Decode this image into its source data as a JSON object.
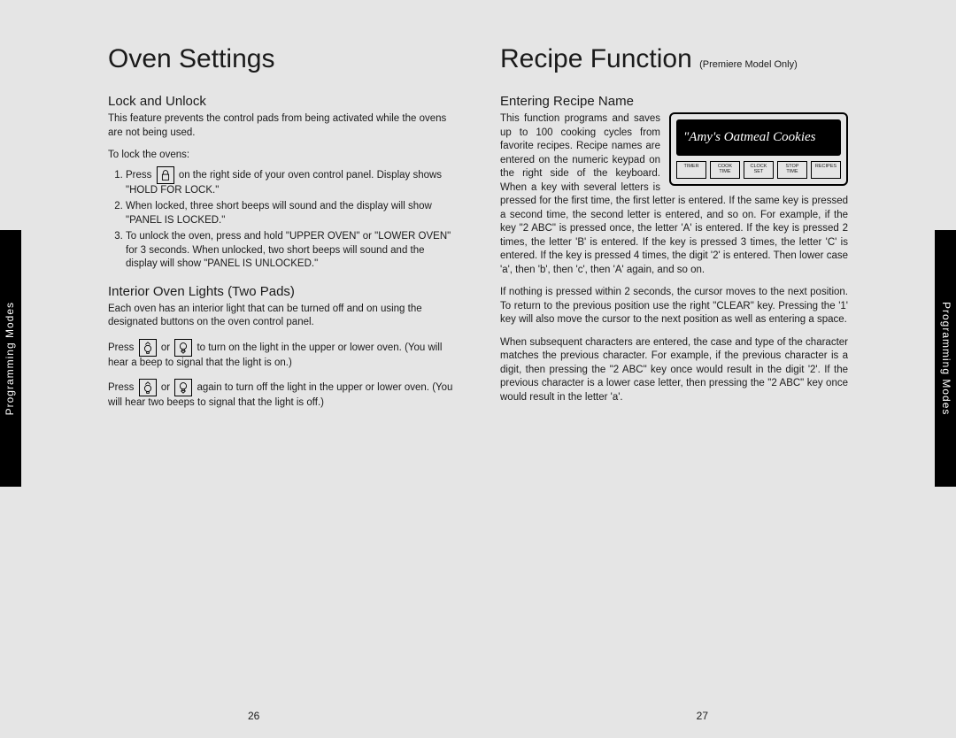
{
  "sidebar": {
    "label": "Programming Modes"
  },
  "left": {
    "title": "Oven Settings",
    "section1": {
      "heading": "Lock and Unlock",
      "intro": "This feature prevents the control pads from being activated while the ovens are not being used.",
      "lead": "To lock the ovens:",
      "step1_a": "Press",
      "step1_b": "on the right side of your oven control panel. Display shows \"HOLD FOR LOCK.\"",
      "step2": "When locked, three short beeps will sound and the display will show \"PANEL IS LOCKED.\"",
      "step3": "To unlock the oven, press and hold \"UPPER OVEN\" or \"LOWER OVEN\" for 3 seconds. When unlocked, two short beeps will sound and the display will show \"PANEL IS UNLOCKED.\""
    },
    "section2": {
      "heading": "Interior Oven Lights (Two Pads)",
      "intro": "Each oven has an interior light that can be turned off and on using the designated buttons on the oven control panel.",
      "p2_a": "Press",
      "p2_or": "or",
      "p2_b": "to turn on the light in the upper or lower oven. (You will hear a beep to signal that the light is on.)",
      "p3_a": "Press",
      "p3_b": "again to turn off the light in the upper or lower oven. (You will hear two beeps to signal that the light is off.)"
    },
    "page_num": "26"
  },
  "right": {
    "title": "Recipe Function",
    "subtitle": "(Premiere Model Only)",
    "section1": {
      "heading": "Entering Recipe Name",
      "display_text": "\"Amy's Oatmeal Cookies",
      "display_buttons": [
        "TIMER",
        "COOK\nTIME",
        "CLOCK\nSET",
        "STOP\nTIME",
        "RECIPES"
      ],
      "p1_a": "This function programs and saves up to 100 cooking cycles from favorite recipes. Recipe names are entered on the numeric keypad on the right side of the keyboard.",
      "p1_b": "When a key with several letters is pressed for the first time, the first letter is entered. If the same key is pressed a second time, the second letter is entered, and so on. For example, if the key \"2 ABC\" is pressed once, the letter 'A' is entered. If the key is pressed 2 times, the letter 'B' is entered. If the key is pressed 3 times, the letter 'C' is entered. If the key is pressed 4 times, the digit '2' is entered. Then lower case 'a', then 'b', then 'c', then 'A' again, and so on.",
      "p2": "If nothing is pressed within 2 seconds, the cursor moves to the next position. To return to the previous position use the right \"CLEAR\" key. Pressing the '1' key will also move the cursor to the next position as well as entering a space.",
      "p3": "When subsequent characters are entered, the case and type of the character matches the previous character. For example, if the previous character is a digit, then pressing the \"2 ABC\" key once would result in the digit '2'. If the previous character is a lower case letter, then pressing the \"2 ABC\" key once would result in the letter 'a'."
    },
    "page_num": "27"
  },
  "icons": {
    "lock_stroke": "#000",
    "bulb_stroke": "#000"
  }
}
